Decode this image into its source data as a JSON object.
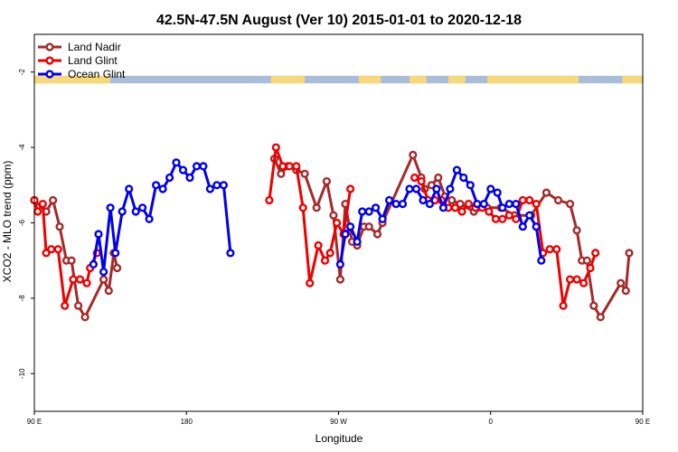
{
  "chart_data": {
    "type": "line",
    "title": "42.5N-47.5N August (Ver 10)   2015-01-01 to 2020-12-18",
    "xlabel": "Longitude",
    "ylabel": "XCO2 - MLO trend (ppm)",
    "xlim": [
      90,
      450
    ],
    "ylim": [
      -11,
      -1
    ],
    "x_ticks": [
      {
        "value": 90,
        "label": "90 E"
      },
      {
        "value": 180,
        "label": "180"
      },
      {
        "value": 270,
        "label": "90 W"
      },
      {
        "value": 360,
        "label": "0"
      },
      {
        "value": 450,
        "label": "90 E"
      },
      {
        "value": 540,
        "label": "180"
      }
    ],
    "y_ticks": [
      -2,
      -4,
      -6,
      -8,
      -10
    ],
    "legend_position": "top-left",
    "land_ocean_band": {
      "land_color": "#f7d97a",
      "ocean_color": "#a9bcd8",
      "y_top": -2.1,
      "y_bottom": -2.3,
      "land_segments": [
        [
          90,
          135
        ],
        [
          230,
          250
        ],
        [
          282,
          295
        ],
        [
          312,
          322
        ],
        [
          335,
          345
        ],
        [
          358,
          412
        ],
        [
          438,
          460
        ]
      ]
    },
    "series": [
      {
        "name": "Land Nadir",
        "color": "#a52a2a",
        "points": [
          [
            90,
            -5.4
          ],
          [
            97,
            -5.7
          ],
          [
            101,
            -5.4
          ],
          [
            105,
            -6.1
          ],
          [
            109,
            -7.0
          ],
          [
            112,
            -7.0
          ],
          [
            116,
            -8.2
          ],
          [
            120,
            -8.5
          ],
          [
            131,
            -7.5
          ],
          [
            134,
            -7.8
          ],
          [
            137,
            -6.8
          ],
          [
            139,
            -7.2
          ],
          [
            232,
            -4.3
          ],
          [
            236,
            -4.7
          ],
          [
            240,
            -4.5
          ],
          [
            245,
            -4.6
          ],
          [
            250,
            -4.7
          ],
          [
            257,
            -5.6
          ],
          [
            263,
            -4.9
          ],
          [
            267,
            -5.8
          ],
          [
            271,
            -7.5
          ],
          [
            274,
            -5.5
          ],
          [
            278,
            -6.5
          ],
          [
            281,
            -6.6
          ],
          [
            285,
            -6.1
          ],
          [
            288,
            -6.1
          ],
          [
            293,
            -6.3
          ],
          [
            296,
            -6.0
          ],
          [
            314,
            -4.2
          ],
          [
            319,
            -4.8
          ],
          [
            321,
            -5.1
          ],
          [
            325,
            -5.0
          ],
          [
            329,
            -4.8
          ],
          [
            333,
            -5.3
          ],
          [
            337,
            -5.4
          ],
          [
            342,
            -5.5
          ],
          [
            350,
            -5.7
          ],
          [
            358,
            -5.6
          ],
          [
            366,
            -5.6
          ],
          [
            374,
            -5.8
          ],
          [
            384,
            -5.8
          ],
          [
            393,
            -5.2
          ],
          [
            400,
            -5.4
          ],
          [
            407,
            -5.5
          ],
          [
            411,
            -6.2
          ],
          [
            414,
            -7.0
          ],
          [
            417,
            -7.0
          ],
          [
            421,
            -8.2
          ],
          [
            425,
            -8.5
          ],
          [
            437,
            -7.6
          ],
          [
            440,
            -7.8
          ],
          [
            442,
            -6.8
          ]
        ]
      },
      {
        "name": "Land Glint",
        "color": "#ee0000",
        "points": [
          [
            90,
            -5.4
          ],
          [
            92,
            -5.7
          ],
          [
            95,
            -5.5
          ],
          [
            97,
            -6.8
          ],
          [
            100,
            -6.7
          ],
          [
            104,
            -6.7
          ],
          [
            108,
            -8.2
          ],
          [
            113,
            -7.5
          ],
          [
            117,
            -7.5
          ],
          [
            121,
            -7.6
          ],
          [
            123,
            -7.2
          ],
          [
            127,
            -6.8
          ],
          [
            229,
            -5.4
          ],
          [
            233,
            -4.0
          ],
          [
            237,
            -4.5
          ],
          [
            241,
            -4.5
          ],
          [
            245,
            -4.5
          ],
          [
            249,
            -5.6
          ],
          [
            253,
            -7.6
          ],
          [
            258,
            -6.6
          ],
          [
            262,
            -7.0
          ],
          [
            265,
            -6.8
          ],
          [
            269,
            -6.0
          ],
          [
            273,
            -6.3
          ],
          [
            277,
            -5.1
          ],
          [
            315,
            -4.8
          ],
          [
            319,
            -4.9
          ],
          [
            323,
            -5.4
          ],
          [
            327,
            -5.4
          ],
          [
            331,
            -5.4
          ],
          [
            335,
            -5.6
          ],
          [
            339,
            -5.6
          ],
          [
            343,
            -5.7
          ],
          [
            347,
            -5.5
          ],
          [
            351,
            -5.6
          ],
          [
            355,
            -5.6
          ],
          [
            359,
            -5.7
          ],
          [
            363,
            -5.9
          ],
          [
            367,
            -5.9
          ],
          [
            371,
            -5.8
          ],
          [
            375,
            -5.9
          ],
          [
            379,
            -5.4
          ],
          [
            383,
            -5.4
          ],
          [
            387,
            -5.5
          ],
          [
            391,
            -6.8
          ],
          [
            395,
            -6.7
          ],
          [
            399,
            -6.7
          ],
          [
            403,
            -8.2
          ],
          [
            407,
            -7.5
          ],
          [
            411,
            -7.5
          ],
          [
            415,
            -7.6
          ],
          [
            419,
            -7.2
          ],
          [
            422,
            -6.8
          ]
        ]
      },
      {
        "name": "Ocean Glint",
        "color": "#0000ee",
        "points": [
          [
            125,
            -7.1
          ],
          [
            128,
            -6.3
          ],
          [
            131,
            -7.3
          ],
          [
            135,
            -5.6
          ],
          [
            138,
            -6.8
          ],
          [
            142,
            -5.7
          ],
          [
            146,
            -5.1
          ],
          [
            150,
            -5.7
          ],
          [
            154,
            -5.6
          ],
          [
            158,
            -5.9
          ],
          [
            162,
            -5.0
          ],
          [
            166,
            -5.1
          ],
          [
            170,
            -4.8
          ],
          [
            174,
            -4.4
          ],
          [
            178,
            -4.6
          ],
          [
            182,
            -4.8
          ],
          [
            186,
            -4.5
          ],
          [
            190,
            -4.5
          ],
          [
            194,
            -5.1
          ],
          [
            198,
            -5.0
          ],
          [
            202,
            -5.0
          ],
          [
            206,
            -6.8
          ],
          [
            271,
            -7.1
          ],
          [
            274,
            -6.3
          ],
          [
            277,
            -6.1
          ],
          [
            281,
            -6.5
          ],
          [
            284,
            -5.7
          ],
          [
            288,
            -5.7
          ],
          [
            292,
            -5.6
          ],
          [
            296,
            -5.9
          ],
          [
            300,
            -5.4
          ],
          [
            304,
            -5.5
          ],
          [
            308,
            -5.5
          ],
          [
            312,
            -5.1
          ],
          [
            316,
            -5.1
          ],
          [
            320,
            -5.4
          ],
          [
            324,
            -5.5
          ],
          [
            328,
            -5.1
          ],
          [
            332,
            -5.6
          ],
          [
            336,
            -5.1
          ],
          [
            340,
            -4.6
          ],
          [
            344,
            -4.8
          ],
          [
            348,
            -5.0
          ],
          [
            352,
            -5.5
          ],
          [
            356,
            -5.5
          ],
          [
            360,
            -5.1
          ],
          [
            364,
            -5.2
          ],
          [
            367,
            -5.6
          ],
          [
            371,
            -5.5
          ],
          [
            375,
            -5.5
          ],
          [
            379,
            -6.1
          ],
          [
            383,
            -5.8
          ],
          [
            387,
            -6.1
          ],
          [
            390,
            -7.0
          ]
        ]
      }
    ]
  }
}
